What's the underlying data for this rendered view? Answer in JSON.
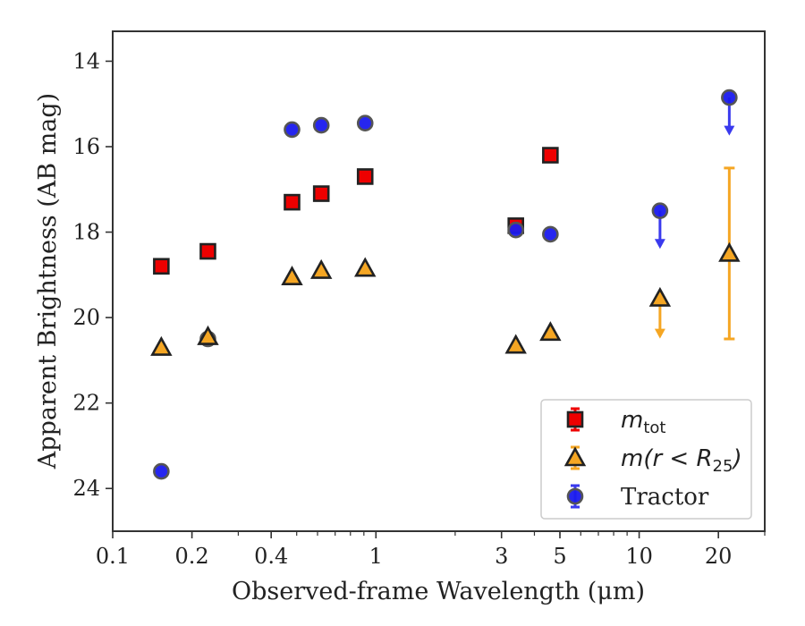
{
  "chart_data": {
    "type": "scatter",
    "xlabel": "Observed-frame Wavelength (μm)",
    "ylabel": "Apparent Brightness (AB mag)",
    "x_scale": "log",
    "xlim": [
      0.1,
      30
    ],
    "ylim": [
      25,
      13.3
    ],
    "y_inverted": true,
    "grid": false,
    "legend_position": "lower-right",
    "x_ticks": [
      {
        "value": 0.1,
        "label": "0.1"
      },
      {
        "value": 0.2,
        "label": "0.2"
      },
      {
        "value": 0.4,
        "label": "0.4"
      },
      {
        "value": 1,
        "label": "1"
      },
      {
        "value": 3,
        "label": "3"
      },
      {
        "value": 5,
        "label": "5"
      },
      {
        "value": 10,
        "label": "10"
      },
      {
        "value": 20,
        "label": "20"
      }
    ],
    "y_ticks": [
      {
        "value": 14,
        "label": "14"
      },
      {
        "value": 16,
        "label": "16"
      },
      {
        "value": 18,
        "label": "18"
      },
      {
        "value": 20,
        "label": "20"
      },
      {
        "value": 22,
        "label": "22"
      },
      {
        "value": 24,
        "label": "24"
      }
    ],
    "series": [
      {
        "name": "m_tot",
        "legend_main": "m",
        "legend_sub": "tot",
        "marker": "square",
        "color": "#ee0000",
        "errcolor": "#ee0000",
        "points": [
          {
            "x": 0.153,
            "y": 18.8
          },
          {
            "x": 0.23,
            "y": 18.45
          },
          {
            "x": 0.48,
            "y": 17.3
          },
          {
            "x": 0.62,
            "y": 17.1
          },
          {
            "x": 0.91,
            "y": 16.7
          },
          {
            "x": 3.4,
            "y": 17.85
          },
          {
            "x": 4.6,
            "y": 16.2
          }
        ]
      },
      {
        "name": "m(r < R25)",
        "legend_main": "m(r < R",
        "legend_sub": "25",
        "legend_tail": ")",
        "marker": "triangle",
        "color": "#f5a623",
        "errcolor": "#f5a623",
        "points": [
          {
            "x": 0.153,
            "y": 20.7
          },
          {
            "x": 0.23,
            "y": 20.45
          },
          {
            "x": 0.48,
            "y": 19.05
          },
          {
            "x": 0.62,
            "y": 18.9
          },
          {
            "x": 0.91,
            "y": 18.85
          },
          {
            "x": 3.4,
            "y": 20.65
          },
          {
            "x": 4.6,
            "y": 20.35
          },
          {
            "x": 12,
            "y": 19.55,
            "upper_limit": true,
            "arrow_to": 20.45
          },
          {
            "x": 22,
            "y": 18.5,
            "err_low": 16.5,
            "err_high": 20.5
          }
        ]
      },
      {
        "name": "Tractor",
        "legend_main": "Tractor",
        "marker": "circle",
        "color": "#1a1aee",
        "errcolor": "#3a3aee",
        "points": [
          {
            "x": 0.153,
            "y": 23.6
          },
          {
            "x": 0.23,
            "y": 20.5
          },
          {
            "x": 0.48,
            "y": 15.6
          },
          {
            "x": 0.62,
            "y": 15.5
          },
          {
            "x": 0.91,
            "y": 15.45
          },
          {
            "x": 3.4,
            "y": 17.95
          },
          {
            "x": 4.6,
            "y": 18.05
          },
          {
            "x": 12,
            "y": 17.5,
            "upper_limit": true,
            "arrow_to": 18.35
          },
          {
            "x": 22,
            "y": 14.85,
            "upper_limit": true,
            "arrow_to": 15.7
          }
        ]
      }
    ]
  }
}
